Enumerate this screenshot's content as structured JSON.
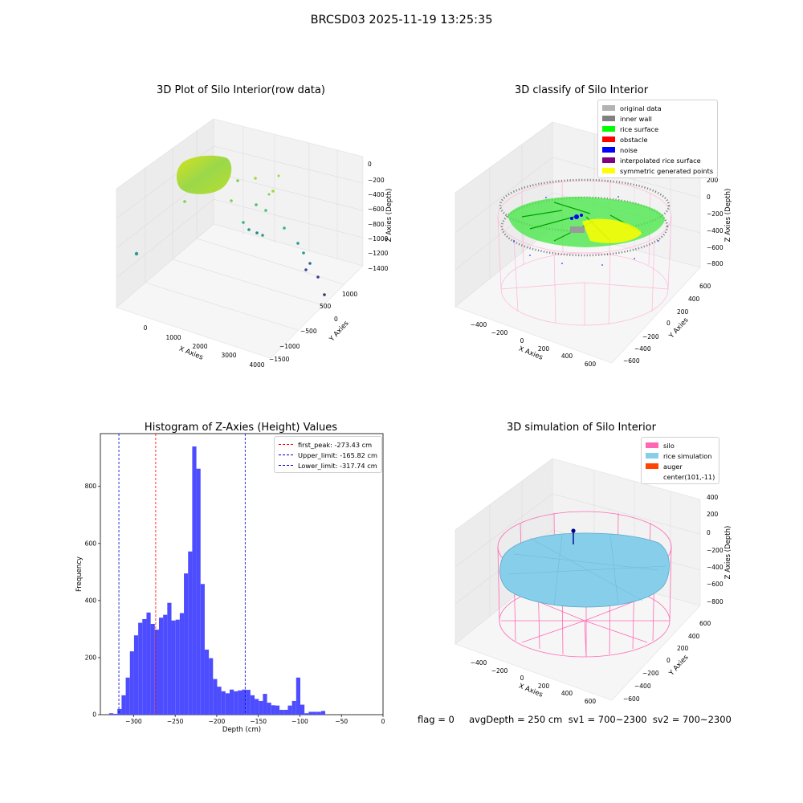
{
  "figure": {
    "suptitle": "BRCSD03 2025-11-19 13:25:35",
    "footer": "flag = 0     avgDepth = 250 cm  sv1 = 700~2300  sv2 = 700~2300"
  },
  "colors": {
    "histogram_bar": "#4d4dff",
    "first_peak_line": "#ff0000",
    "limit_lines": "#0000cc",
    "silo_wire": "#ff69b4",
    "rice_surface": "#87ceeb",
    "inner_wall": "#808080",
    "rice_points": "#00ff00",
    "noise": "#0000ff",
    "symmetric": "#ffff00"
  },
  "panels": {
    "p1": {
      "title": "3D Plot of Silo Interior(row data)",
      "xlabel": "X Axies",
      "ylabel": "Y Axies",
      "zlabel": "Z Axies (Depth)",
      "xticks": [
        "0",
        "1000",
        "2000",
        "3000",
        "4000"
      ],
      "yticks": [
        "1000",
        "500",
        "0",
        "−500",
        "−1000",
        "−1500"
      ],
      "zticks": [
        "0",
        "−200",
        "−400",
        "−600",
        "−800",
        "−1000",
        "−1200",
        "−1400"
      ]
    },
    "p2": {
      "title": "3D classify of Silo Interior",
      "xlabel": "X Axies",
      "ylabel": "Y Axies",
      "zlabel": "Z Axies (Depth)",
      "xticks": [
        "−400",
        "−200",
        "0",
        "200",
        "400",
        "600"
      ],
      "yticks": [
        "600",
        "400",
        "200",
        "0",
        "−200",
        "−400",
        "−600"
      ],
      "zticks": [
        "200",
        "0",
        "−200",
        "−400",
        "−600",
        "−800"
      ],
      "legend": [
        {
          "label": "original data",
          "color": "#b3b3b3"
        },
        {
          "label": "inner wall",
          "color": "#808080"
        },
        {
          "label": "rice surface",
          "color": "#00ff00"
        },
        {
          "label": "obstacle",
          "color": "#ff0000"
        },
        {
          "label": "noise",
          "color": "#0000ff"
        },
        {
          "label": "interpolated rice surface",
          "color": "#800080"
        },
        {
          "label": "symmetric generated points",
          "color": "#ffff00"
        }
      ]
    },
    "p4": {
      "title": "3D simulation of Silo Interior",
      "xlabel": "X Axies",
      "ylabel": "Y Axies",
      "zlabel": "Z Axies (Depth)",
      "xticks": [
        "−400",
        "−200",
        "0",
        "200",
        "400",
        "600"
      ],
      "yticks": [
        "600",
        "400",
        "200",
        "0",
        "−200",
        "−400",
        "−600"
      ],
      "zticks": [
        "400",
        "200",
        "0",
        "−200",
        "−400",
        "−600",
        "−800"
      ],
      "legend": [
        {
          "label": "silo",
          "color": "#ff69b4"
        },
        {
          "label": "rice simulation",
          "color": "#87ceeb"
        },
        {
          "label": "auger",
          "color": "#ff4500"
        },
        {
          "label": "center(101,-11)",
          "color": ""
        }
      ]
    }
  },
  "chart_data": {
    "type": "bar",
    "title": "Histogram of Z-Axies (Height) Values",
    "xlabel": "Depth (cm)",
    "ylabel": "Frequency",
    "xlim": [
      -340,
      0
    ],
    "ylim": [
      0,
      985
    ],
    "xticks": [
      -300,
      -250,
      -200,
      -150,
      -100,
      -50,
      0
    ],
    "yticks": [
      0,
      200,
      400,
      600,
      800
    ],
    "bin_width": 5,
    "bins": [
      {
        "x": -327,
        "y": 5
      },
      {
        "x": -322,
        "y": 3
      },
      {
        "x": -317,
        "y": 20
      },
      {
        "x": -312,
        "y": 68
      },
      {
        "x": -307,
        "y": 130
      },
      {
        "x": -302,
        "y": 222
      },
      {
        "x": -297,
        "y": 278
      },
      {
        "x": -292,
        "y": 322
      },
      {
        "x": -287,
        "y": 335
      },
      {
        "x": -282,
        "y": 358
      },
      {
        "x": -277,
        "y": 318
      },
      {
        "x": -272,
        "y": 298
      },
      {
        "x": -267,
        "y": 340
      },
      {
        "x": -262,
        "y": 350
      },
      {
        "x": -257,
        "y": 392
      },
      {
        "x": -252,
        "y": 330
      },
      {
        "x": -247,
        "y": 333
      },
      {
        "x": -242,
        "y": 356
      },
      {
        "x": -237,
        "y": 495
      },
      {
        "x": -232,
        "y": 572
      },
      {
        "x": -227,
        "y": 940
      },
      {
        "x": -222,
        "y": 862
      },
      {
        "x": -217,
        "y": 458
      },
      {
        "x": -212,
        "y": 228
      },
      {
        "x": -207,
        "y": 198
      },
      {
        "x": -202,
        "y": 125
      },
      {
        "x": -197,
        "y": 98
      },
      {
        "x": -192,
        "y": 82
      },
      {
        "x": -187,
        "y": 75
      },
      {
        "x": -182,
        "y": 88
      },
      {
        "x": -177,
        "y": 82
      },
      {
        "x": -172,
        "y": 85
      },
      {
        "x": -167,
        "y": 88
      },
      {
        "x": -162,
        "y": 87
      },
      {
        "x": -157,
        "y": 68
      },
      {
        "x": -152,
        "y": 55
      },
      {
        "x": -147,
        "y": 48
      },
      {
        "x": -142,
        "y": 73
      },
      {
        "x": -137,
        "y": 42
      },
      {
        "x": -132,
        "y": 33
      },
      {
        "x": -127,
        "y": 32
      },
      {
        "x": -122,
        "y": 17
      },
      {
        "x": -117,
        "y": 17
      },
      {
        "x": -112,
        "y": 32
      },
      {
        "x": -107,
        "y": 48
      },
      {
        "x": -102,
        "y": 130
      },
      {
        "x": -97,
        "y": 35
      },
      {
        "x": -92,
        "y": 5
      },
      {
        "x": -87,
        "y": 10
      },
      {
        "x": -82,
        "y": 10
      },
      {
        "x": -77,
        "y": 10
      },
      {
        "x": -72,
        "y": 13
      }
    ],
    "vlines": [
      {
        "label": "first_peak: -273.43 cm",
        "x": -273.43,
        "color": "#ff0000"
      },
      {
        "label": "Upper_limit: -165.82 cm",
        "x": -165.82,
        "color": "#0000cc"
      },
      {
        "label": "Lower_limit: -317.74 cm",
        "x": -317.74,
        "color": "#0000cc"
      }
    ]
  }
}
